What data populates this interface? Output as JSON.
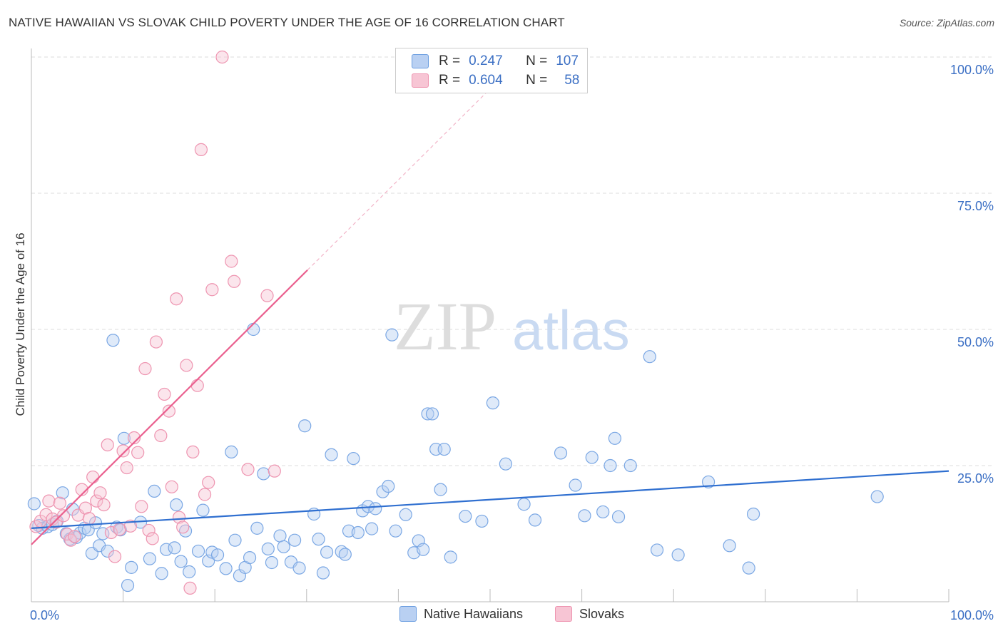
{
  "header": {
    "title": "NATIVE HAWAIIAN VS SLOVAK CHILD POVERTY UNDER THE AGE OF 16 CORRELATION CHART",
    "source": "Source: ZipAtlas.com"
  },
  "watermark": {
    "zip": "ZIP",
    "atlas": "atlas"
  },
  "legend": {
    "r_label": "R =",
    "n_label": "N =",
    "rows": [
      {
        "name": "Native Hawaiians",
        "r": "0.247",
        "n": "107",
        "color": "#6a9de0"
      },
      {
        "name": "Slovaks",
        "r": "0.604",
        "n": "58",
        "color": "#f08aa8"
      }
    ]
  },
  "colors": {
    "blue_fill": "#b9d0f2",
    "blue_stroke": "#7aa7e4",
    "blue_line": "#2f6fd0",
    "pink_fill": "#f7c5d4",
    "pink_stroke": "#ee94b0",
    "pink_line": "#ea5f8e",
    "axis_label": "#3b6fc4",
    "grid": "#dddddd"
  },
  "chart_data": {
    "type": "scatter",
    "title": "NATIVE HAWAIIAN VS SLOVAK CHILD POVERTY UNDER THE AGE OF 16 CORRELATION CHART",
    "xlabel": "",
    "ylabel": "Child Poverty Under the Age of 16",
    "xlim": [
      0,
      100
    ],
    "ylim": [
      0,
      100
    ],
    "x_tick_labels": [
      "0.0%",
      "100.0%"
    ],
    "y_tick_labels": [
      {
        "value": 25,
        "label": "25.0%"
      },
      {
        "value": 50,
        "label": "50.0%"
      },
      {
        "value": 75,
        "label": "75.0%"
      },
      {
        "value": 100,
        "label": "100.0%"
      }
    ],
    "grid": true,
    "series": [
      {
        "name": "Native Hawaiians",
        "trend": {
          "x": [
            0,
            100
          ],
          "y": [
            13.5,
            24.0
          ],
          "dashed_extension": false
        },
        "points": [
          [
            0.3,
            18
          ],
          [
            0.8,
            14
          ],
          [
            1.2,
            13.5
          ],
          [
            1.8,
            13.8
          ],
          [
            2.3,
            14.2
          ],
          [
            2.8,
            14.8
          ],
          [
            3.4,
            20
          ],
          [
            3.8,
            12.5
          ],
          [
            4.2,
            11.5
          ],
          [
            4.5,
            17
          ],
          [
            4.9,
            11.8
          ],
          [
            5.3,
            12.6
          ],
          [
            5.8,
            13.5
          ],
          [
            6.2,
            13.2
          ],
          [
            6.6,
            8.9
          ],
          [
            7,
            14.5
          ],
          [
            7.4,
            10.3
          ],
          [
            7.8,
            12.5
          ],
          [
            8.3,
            9.3
          ],
          [
            8.9,
            48
          ],
          [
            9.3,
            13.7
          ],
          [
            9.7,
            13.2
          ],
          [
            10.1,
            30
          ],
          [
            10.5,
            3.0
          ],
          [
            10.9,
            6.3
          ],
          [
            11.9,
            14.6
          ],
          [
            12.9,
            7.9
          ],
          [
            13.4,
            20.3
          ],
          [
            14.2,
            5.2
          ],
          [
            14.7,
            9.6
          ],
          [
            15.6,
            9.9
          ],
          [
            15.8,
            17.8
          ],
          [
            16.3,
            7.4
          ],
          [
            16.8,
            13
          ],
          [
            17.2,
            5.5
          ],
          [
            18.2,
            9.3
          ],
          [
            18.7,
            16.8
          ],
          [
            19.3,
            7.5
          ],
          [
            19.7,
            9.1
          ],
          [
            20.3,
            8.6
          ],
          [
            21.2,
            6.1
          ],
          [
            21.8,
            27.5
          ],
          [
            22.2,
            11.3
          ],
          [
            22.7,
            4.8
          ],
          [
            23.3,
            6.3
          ],
          [
            23.8,
            8.1
          ],
          [
            24.2,
            50
          ],
          [
            24.6,
            13.5
          ],
          [
            25.3,
            23.5
          ],
          [
            25.8,
            9.7
          ],
          [
            26.2,
            7.2
          ],
          [
            27.1,
            12.1
          ],
          [
            27.5,
            10.1
          ],
          [
            28.3,
            7.3
          ],
          [
            28.7,
            11.3
          ],
          [
            29.2,
            6.2
          ],
          [
            29.8,
            32.3
          ],
          [
            30.8,
            16.1
          ],
          [
            31.3,
            11.5
          ],
          [
            31.8,
            5.3
          ],
          [
            32.2,
            9.1
          ],
          [
            32.7,
            27
          ],
          [
            33.8,
            9.2
          ],
          [
            34.2,
            8.7
          ],
          [
            34.6,
            13.0
          ],
          [
            35.1,
            26.3
          ],
          [
            35.6,
            12.7
          ],
          [
            36.1,
            16.7
          ],
          [
            36.7,
            17.5
          ],
          [
            37.1,
            13.4
          ],
          [
            37.5,
            17.1
          ],
          [
            38.3,
            20.2
          ],
          [
            38.9,
            21.2
          ],
          [
            39.3,
            49
          ],
          [
            39.7,
            13.0
          ],
          [
            40.8,
            16
          ],
          [
            41.7,
            9
          ],
          [
            42.2,
            11.2
          ],
          [
            42.7,
            9.6
          ],
          [
            43.2,
            34.5
          ],
          [
            43.7,
            34.5
          ],
          [
            44.1,
            28
          ],
          [
            44.6,
            20.6
          ],
          [
            45.0,
            28
          ],
          [
            45.7,
            8.2
          ],
          [
            47.3,
            15.7
          ],
          [
            49.1,
            14.8
          ],
          [
            50.3,
            36.5
          ],
          [
            51.7,
            25.3
          ],
          [
            53.7,
            17.9
          ],
          [
            54.9,
            15
          ],
          [
            57.7,
            27.3
          ],
          [
            59.3,
            21.4
          ],
          [
            60.3,
            15.8
          ],
          [
            61.1,
            26.5
          ],
          [
            62.3,
            16.5
          ],
          [
            63.1,
            25
          ],
          [
            63.6,
            30
          ],
          [
            64.0,
            15.6
          ],
          [
            65.3,
            25
          ],
          [
            67.4,
            45
          ],
          [
            68.2,
            9.5
          ],
          [
            70.5,
            8.6
          ],
          [
            73.8,
            22
          ],
          [
            76.1,
            10.3
          ],
          [
            78.2,
            6.2
          ],
          [
            78.7,
            16.1
          ],
          [
            92.2,
            19.3
          ]
        ]
      },
      {
        "name": "Slovaks",
        "trend": {
          "x": [
            0,
            30.1
          ],
          "y": [
            10.5,
            60.9
          ],
          "dashed_extension": {
            "x": [
              30.1,
              53.5
            ],
            "y": [
              60.9,
              100
            ]
          }
        },
        "points": [
          [
            0.5,
            13.8
          ],
          [
            1.0,
            14.8
          ],
          [
            1.6,
            16
          ],
          [
            1.9,
            18.5
          ],
          [
            2.3,
            15.2
          ],
          [
            2.7,
            14.6
          ],
          [
            3.1,
            18.1
          ],
          [
            3.5,
            15.8
          ],
          [
            3.9,
            12.4
          ],
          [
            4.3,
            11.3
          ],
          [
            4.7,
            12.0
          ],
          [
            5.1,
            15.9
          ],
          [
            5.5,
            20.6
          ],
          [
            5.9,
            17.2
          ],
          [
            6.3,
            15.3
          ],
          [
            6.7,
            22.9
          ],
          [
            7.1,
            18.5
          ],
          [
            7.5,
            20
          ],
          [
            7.9,
            17.8
          ],
          [
            8.3,
            28.8
          ],
          [
            8.7,
            12.7
          ],
          [
            9.1,
            8.3
          ],
          [
            9.6,
            13.3
          ],
          [
            10.0,
            27.7
          ],
          [
            10.4,
            24.6
          ],
          [
            10.8,
            13.9
          ],
          [
            11.2,
            30.1
          ],
          [
            11.6,
            27.4
          ],
          [
            12.0,
            17.5
          ],
          [
            12.4,
            42.8
          ],
          [
            12.8,
            13.1
          ],
          [
            13.2,
            11.6
          ],
          [
            13.6,
            47.7
          ],
          [
            14.1,
            30.5
          ],
          [
            14.5,
            38.1
          ],
          [
            15.0,
            35
          ],
          [
            15.3,
            21.1
          ],
          [
            15.8,
            55.6
          ],
          [
            16.1,
            15.5
          ],
          [
            16.5,
            13.7
          ],
          [
            16.9,
            43.4
          ],
          [
            17.3,
            2.5
          ],
          [
            17.6,
            27.5
          ],
          [
            18.1,
            39.7
          ],
          [
            18.5,
            83
          ],
          [
            18.9,
            19.7
          ],
          [
            19.3,
            21.9
          ],
          [
            19.7,
            57.3
          ],
          [
            20.8,
            100
          ],
          [
            21.8,
            62.5
          ],
          [
            22.1,
            58.8
          ],
          [
            23.6,
            24.3
          ],
          [
            25.7,
            56.2
          ],
          [
            26.5,
            24
          ]
        ]
      }
    ]
  }
}
